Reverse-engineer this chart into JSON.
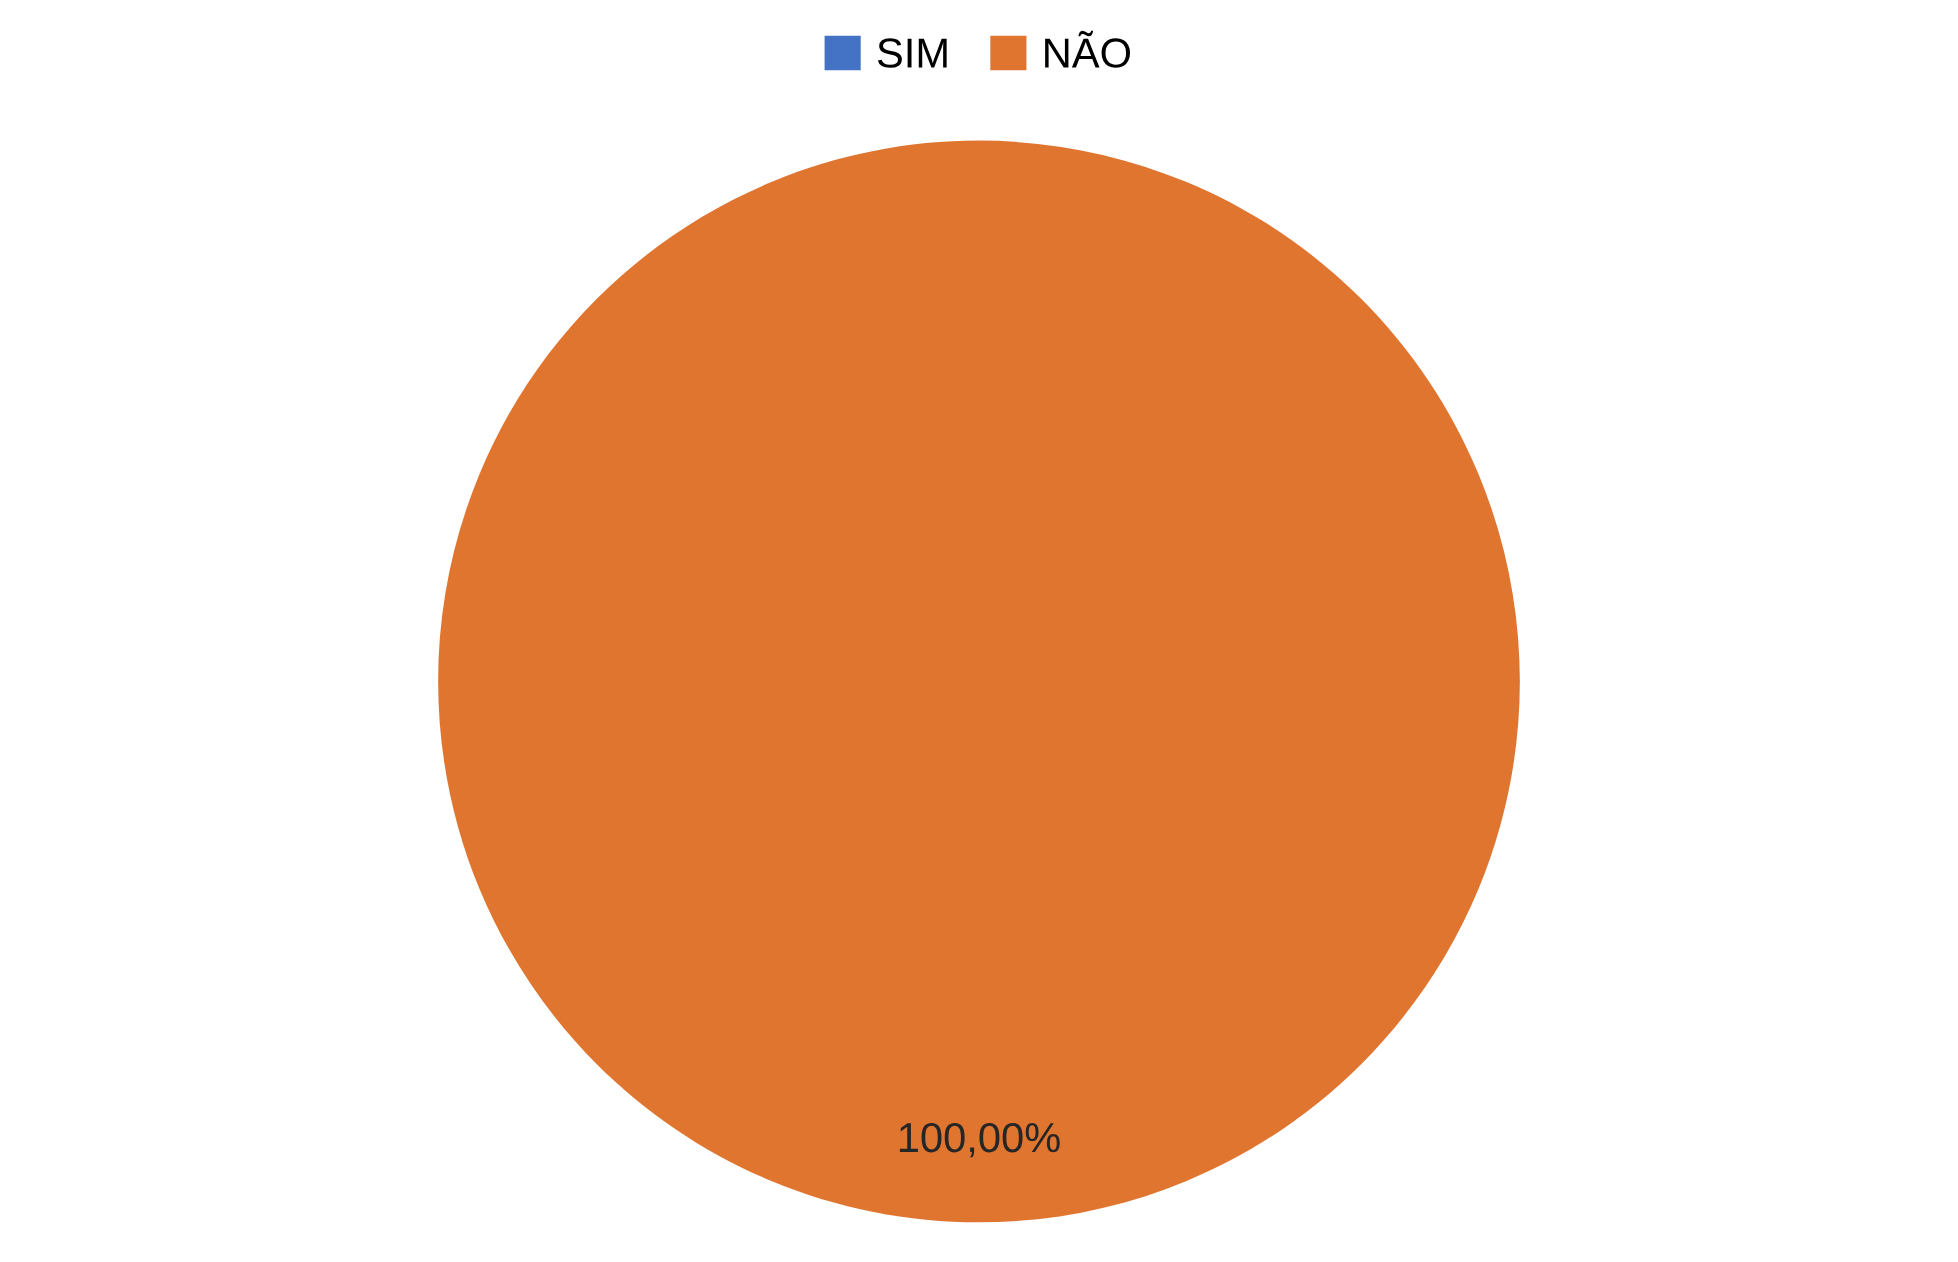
{
  "chart_data": {
    "type": "pie",
    "categories": [
      "SIM",
      "NÃO"
    ],
    "values": [
      0,
      100
    ],
    "colors": [
      "#4472c4",
      "#e07530"
    ],
    "value_labels": [
      null,
      "100,00%"
    ],
    "legend": "top"
  }
}
